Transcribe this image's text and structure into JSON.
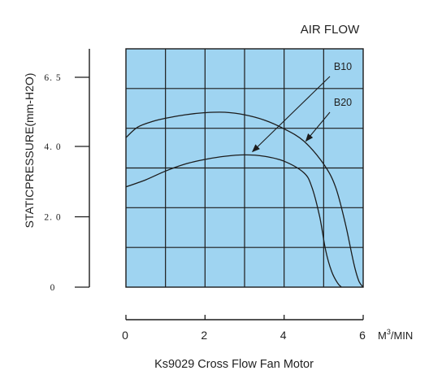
{
  "chart_data": {
    "type": "line",
    "title": "AIR FLOW",
    "caption": "Ks9029  Cross  Flow Fan Motor",
    "xlabel": "M",
    "xlabel_sup": "3",
    "xlabel_suffix": "/MIN",
    "ylabel": "STATICPRESSURE(mm-H2O)",
    "xlim": [
      0,
      6
    ],
    "x_ticks": [
      0,
      2,
      4,
      6
    ],
    "x_tick_labels": [
      "0",
      "2",
      "4",
      "6"
    ],
    "y_ticks": [
      0,
      2,
      4,
      6.5
    ],
    "y_tick_labels": [
      "0",
      "2. 0",
      "4. 0",
      "6. 5"
    ],
    "grid": true,
    "plot_fill": "#9fd4f1",
    "line_color": "#1c1c1c",
    "series": [
      {
        "name": "B10",
        "x": [
          0,
          0.5,
          1.0,
          1.5,
          2.0,
          2.5,
          3.0,
          3.5,
          4.0,
          4.5,
          4.7,
          4.9,
          5.05,
          5.2,
          5.35,
          5.45
        ],
        "y": [
          2.85,
          3.05,
          3.3,
          3.5,
          3.63,
          3.72,
          3.76,
          3.72,
          3.58,
          3.25,
          2.85,
          2.0,
          1.05,
          0.45,
          0.12,
          0.0
        ]
      },
      {
        "name": "B20",
        "x": [
          0,
          0.3,
          0.7,
          1.0,
          1.5,
          2.0,
          2.5,
          3.0,
          3.5,
          4.0,
          4.5,
          5.0,
          5.3,
          5.55,
          5.7,
          5.8,
          5.9,
          6.0
        ],
        "y": [
          4.25,
          4.55,
          4.72,
          4.8,
          4.9,
          4.96,
          4.97,
          4.9,
          4.75,
          4.5,
          4.15,
          3.5,
          2.85,
          1.8,
          1.0,
          0.5,
          0.15,
          0.0
        ]
      }
    ],
    "annotations": [
      {
        "text": "B10",
        "series": "B10",
        "arrow_to": [
          3.2,
          3.85
        ]
      },
      {
        "text": "B20",
        "series": "B20",
        "arrow_to": [
          4.55,
          4.15
        ]
      }
    ]
  }
}
